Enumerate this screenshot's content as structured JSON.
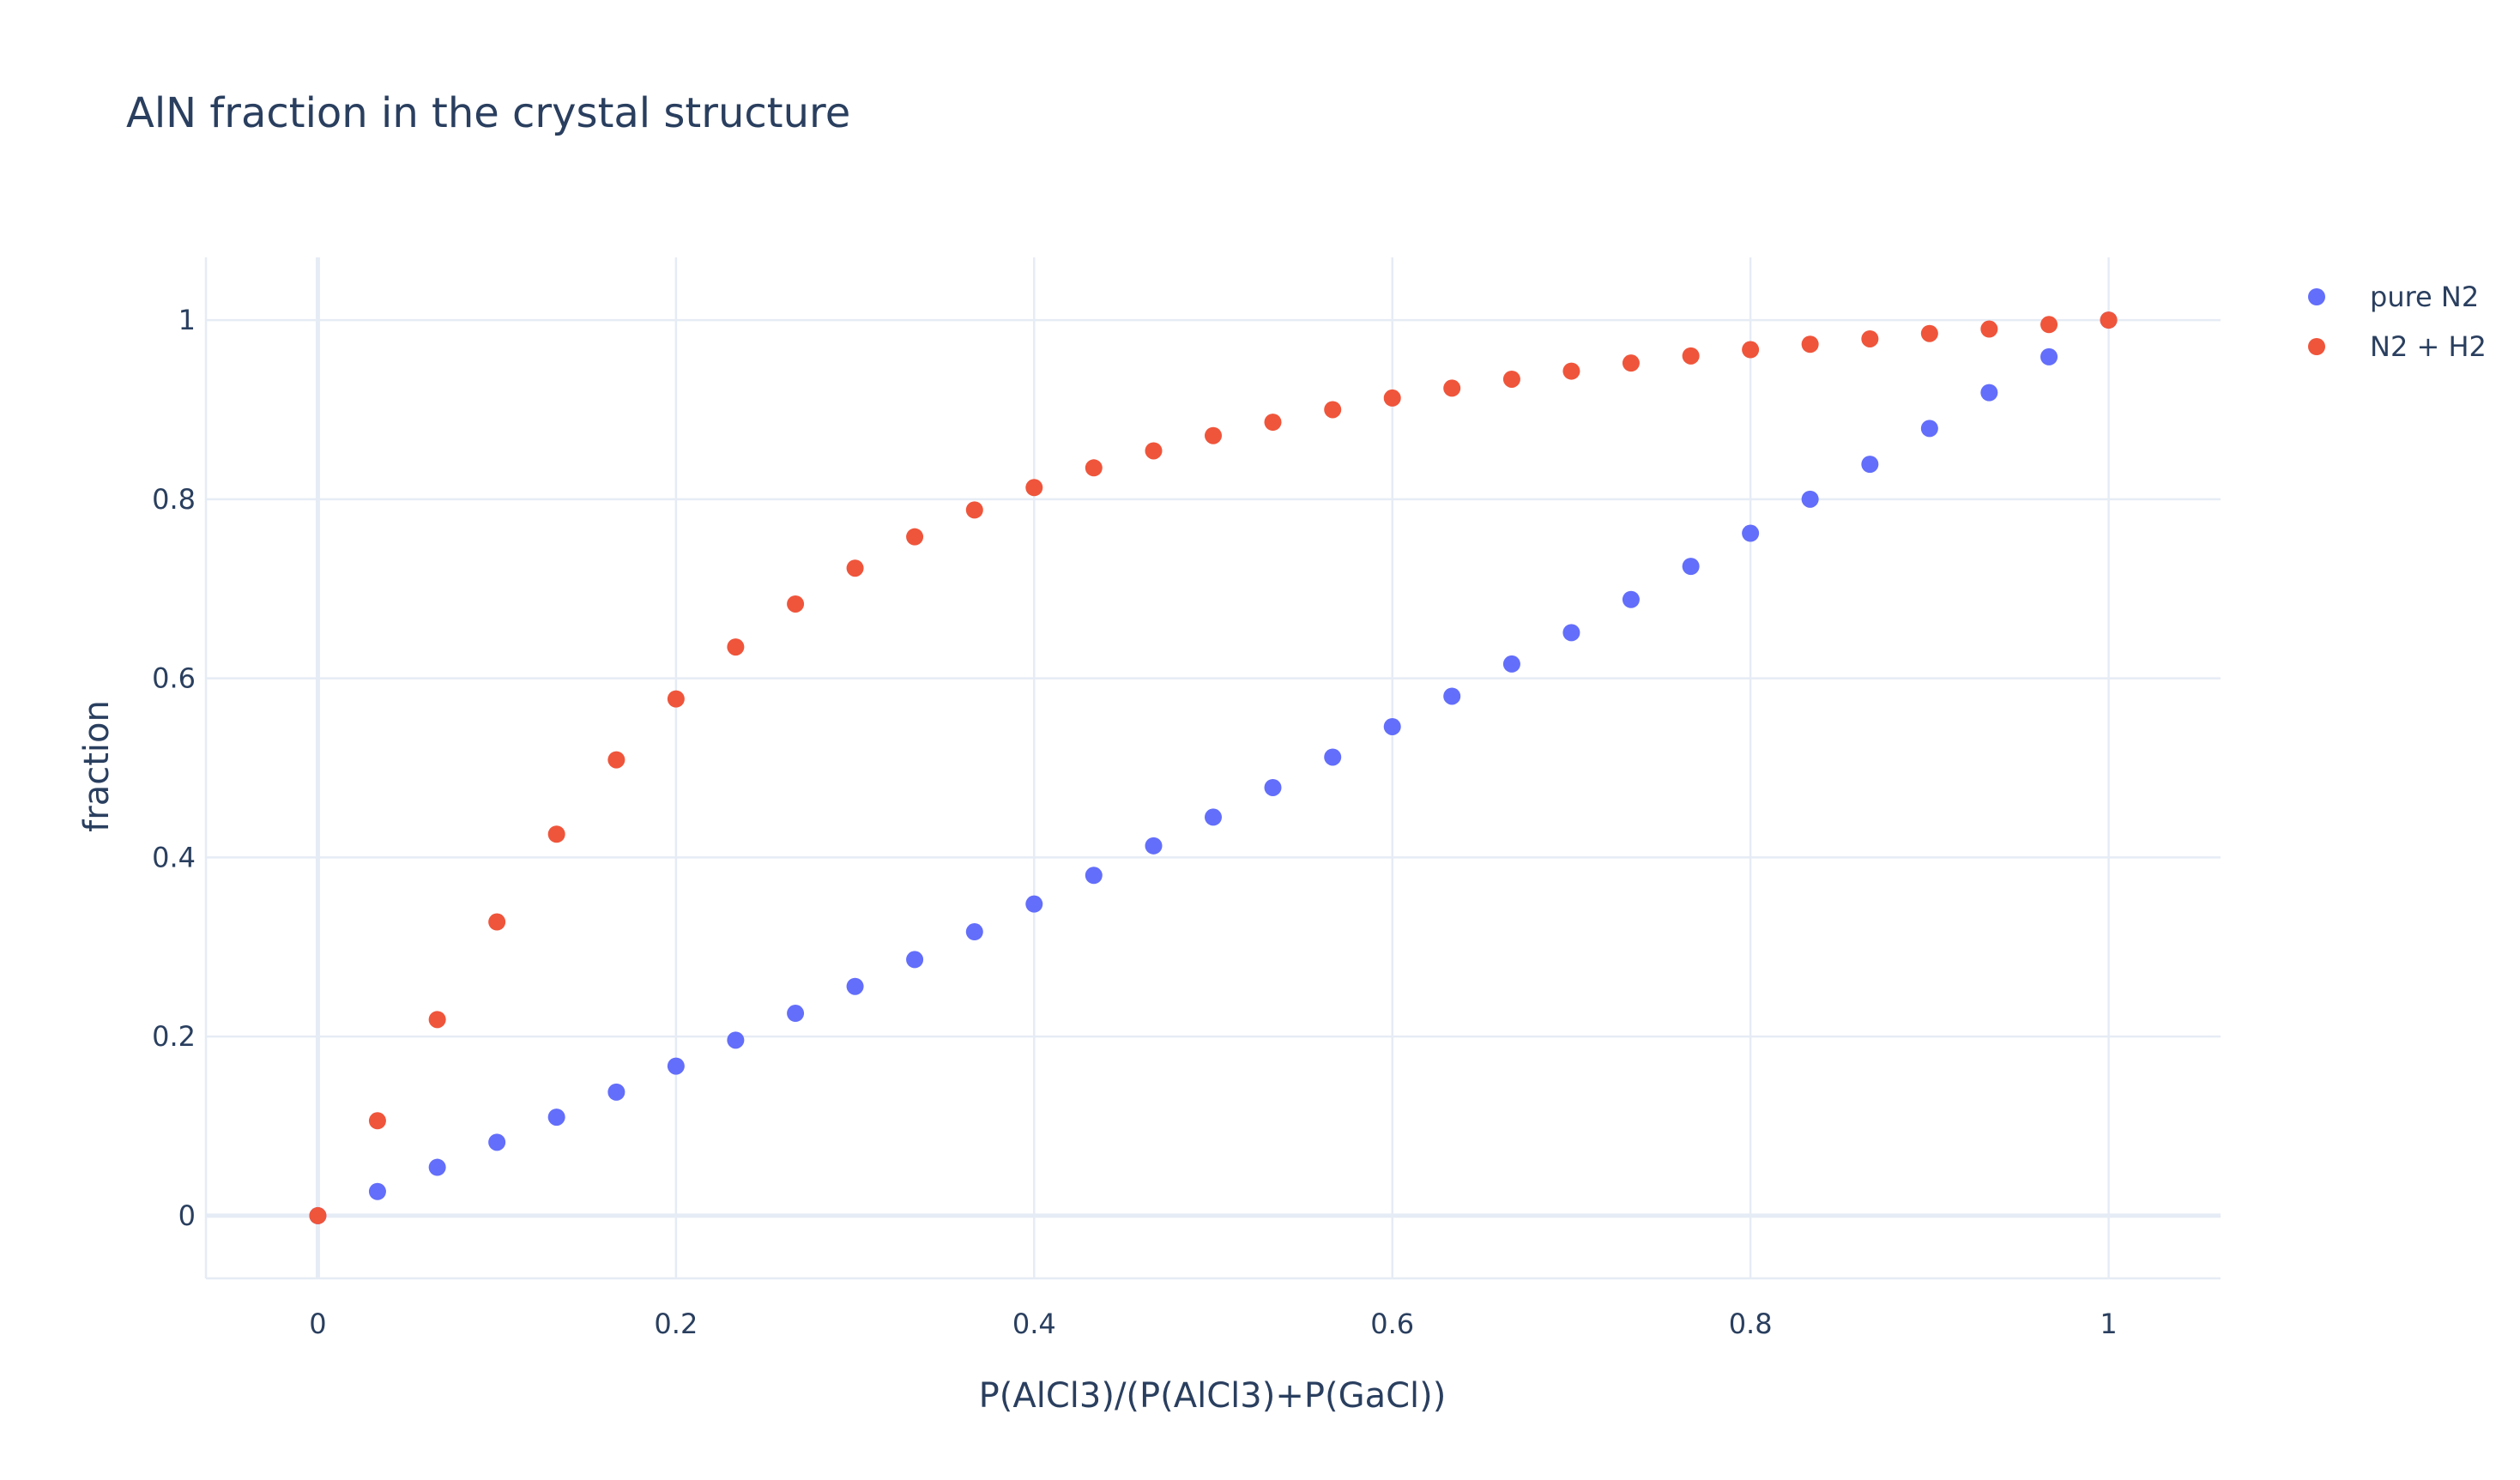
{
  "chart_data": {
    "type": "scatter",
    "title": "AlN fraction in the crystal structure",
    "xlabel": "P(AlCl3)/(P(AlCl3)+P(GaCl))",
    "ylabel": "fraction",
    "xlim": [
      -0.0625,
      1.0625
    ],
    "ylim": [
      -0.07,
      1.07
    ],
    "x_ticks": [
      0,
      0.2,
      0.4,
      0.6,
      0.8,
      1
    ],
    "x_tick_labels": [
      "0",
      "0.2",
      "0.4",
      "0.6",
      "0.8",
      "1"
    ],
    "y_ticks": [
      0,
      0.2,
      0.4,
      0.6,
      0.8,
      1
    ],
    "y_tick_labels": [
      "0",
      "0.2",
      "0.4",
      "0.6",
      "0.8",
      "1"
    ],
    "grid": true,
    "legend_position": "top-right",
    "series": [
      {
        "name": "pure N2",
        "color": "#636efa",
        "x": [
          0,
          0.0333,
          0.0667,
          0.1,
          0.1333,
          0.1667,
          0.2,
          0.2333,
          0.2667,
          0.3,
          0.3333,
          0.3667,
          0.4,
          0.4333,
          0.4667,
          0.5,
          0.5333,
          0.5667,
          0.6,
          0.6333,
          0.6667,
          0.7,
          0.7333,
          0.7667,
          0.8,
          0.8333,
          0.8667,
          0.9,
          0.9333,
          0.9667,
          1
        ],
        "y": [
          0,
          0.027,
          0.054,
          0.082,
          0.11,
          0.138,
          0.167,
          0.196,
          0.226,
          0.256,
          0.286,
          0.317,
          0.348,
          0.38,
          0.413,
          0.445,
          0.478,
          0.512,
          0.546,
          0.58,
          0.616,
          0.651,
          0.688,
          0.725,
          0.762,
          0.8,
          0.839,
          0.879,
          0.919,
          0.959,
          1
        ]
      },
      {
        "name": "N2 + H2",
        "color": "#ef553b",
        "x": [
          0,
          0.0333,
          0.0667,
          0.1,
          0.1333,
          0.1667,
          0.2,
          0.2333,
          0.2667,
          0.3,
          0.3333,
          0.3667,
          0.4,
          0.4333,
          0.4667,
          0.5,
          0.5333,
          0.5667,
          0.6,
          0.6333,
          0.6667,
          0.7,
          0.7333,
          0.7667,
          0.8,
          0.8333,
          0.8667,
          0.9,
          0.9333,
          0.9667,
          1
        ],
        "y": [
          0,
          0.106,
          0.219,
          0.328,
          0.426,
          0.509,
          0.577,
          0.635,
          0.683,
          0.723,
          0.758,
          0.788,
          0.813,
          0.835,
          0.854,
          0.871,
          0.886,
          0.9,
          0.913,
          0.924,
          0.934,
          0.943,
          0.952,
          0.96,
          0.967,
          0.973,
          0.979,
          0.985,
          0.99,
          0.995,
          1
        ]
      }
    ]
  }
}
